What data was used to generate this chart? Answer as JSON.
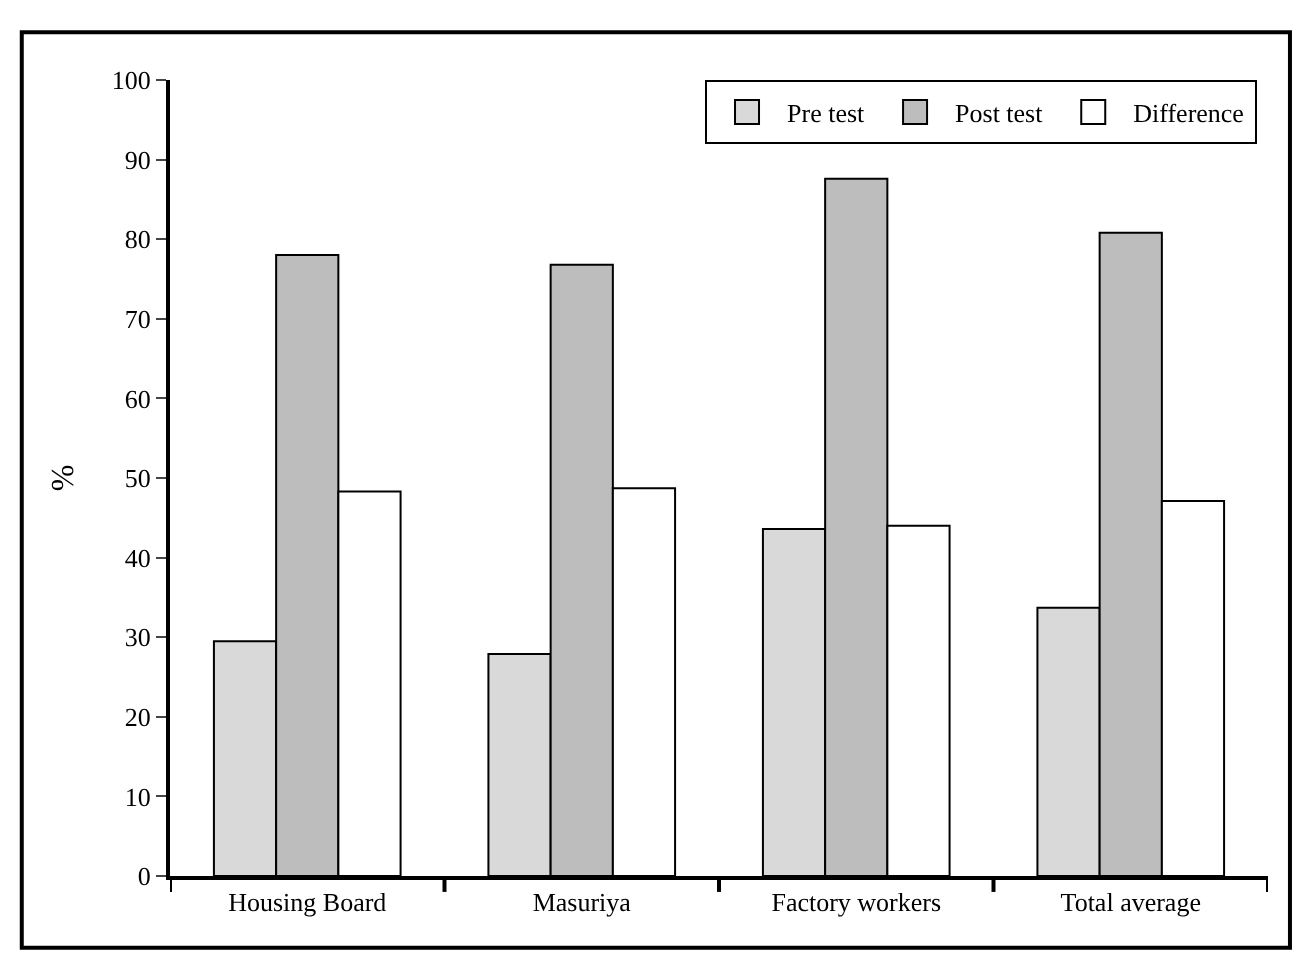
{
  "chart_data": {
    "type": "bar",
    "ylabel": "%",
    "categories": [
      "Housing Board",
      "Masuriya",
      "Factory workers",
      "Total average"
    ],
    "series": [
      {
        "name": "Pre test",
        "color": "#d9d9d9",
        "values": [
          29.5,
          27.9,
          43.6,
          33.7
        ]
      },
      {
        "name": "Post test",
        "color": "#bdbdbd",
        "values": [
          78.0,
          76.8,
          87.6,
          80.8
        ]
      },
      {
        "name": "Difference",
        "color": "#ffffff",
        "values": [
          48.3,
          48.7,
          44.0,
          47.1
        ]
      }
    ],
    "ylim": [
      0,
      100
    ],
    "yticks": [
      0,
      10,
      20,
      30,
      40,
      50,
      60,
      70,
      80,
      90,
      100
    ],
    "legend": "top right"
  }
}
